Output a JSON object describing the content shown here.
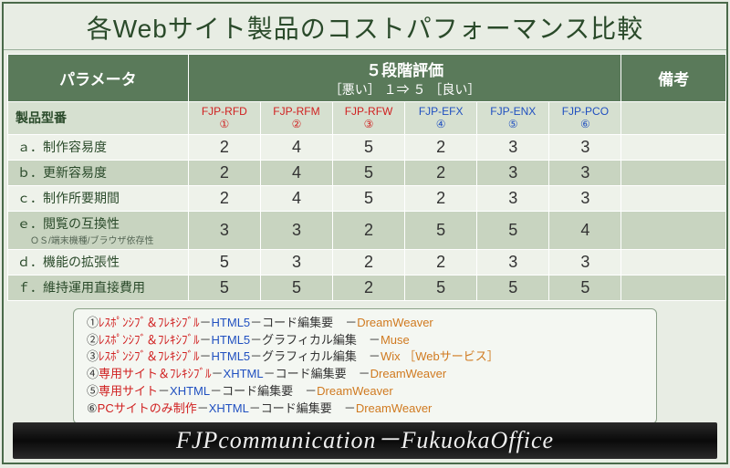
{
  "title": "各Webサイト製品のコストパフォーマンス比較",
  "headers": {
    "param": "パラメータ",
    "rating": "５段階評価",
    "rating_sub": "［悪い］ １⇒ ５ ［良い］",
    "remarks": "備考",
    "model_label": "製品型番"
  },
  "models": [
    {
      "code": "FJP-RFD",
      "num": "①",
      "color": "red"
    },
    {
      "code": "FJP-RFM",
      "num": "②",
      "color": "red"
    },
    {
      "code": "FJP-RFW",
      "num": "③",
      "color": "red"
    },
    {
      "code": "FJP-EFX",
      "num": "④",
      "color": "blue"
    },
    {
      "code": "FJP-ENX",
      "num": "⑤",
      "color": "blue"
    },
    {
      "code": "FJP-PCO",
      "num": "⑥",
      "color": "blue"
    }
  ],
  "rows": [
    {
      "label": "ａ．制作容易度",
      "sub": "",
      "v": [
        "2",
        "4",
        "5",
        "2",
        "3",
        "3"
      ]
    },
    {
      "label": "ｂ．更新容易度",
      "sub": "",
      "v": [
        "2",
        "4",
        "5",
        "2",
        "3",
        "3"
      ]
    },
    {
      "label": "ｃ．制作所要期間",
      "sub": "",
      "v": [
        "2",
        "4",
        "5",
        "2",
        "3",
        "3"
      ]
    },
    {
      "label": "ｅ．閲覧の互換性",
      "sub": "ＯＳ/端末機種/ブラウザ依存性",
      "v": [
        "3",
        "3",
        "2",
        "5",
        "5",
        "4"
      ]
    },
    {
      "label": "ｄ．機能の拡張性",
      "sub": "",
      "v": [
        "5",
        "3",
        "2",
        "2",
        "3",
        "3"
      ]
    },
    {
      "label": "ｆ．維持運用直接費用",
      "sub": "",
      "v": [
        "5",
        "5",
        "2",
        "5",
        "5",
        "5"
      ]
    }
  ],
  "legend": [
    {
      "num": "①",
      "type": "ﾚｽﾎﾟﾝｼﾌﾞ＆ﾌﾚｷｼﾌﾞﾙ",
      "tc": "red",
      "tech": "HTML5",
      "edit": "コード編集要",
      "tool": "DreamWeaver"
    },
    {
      "num": "②",
      "type": "ﾚｽﾎﾟﾝｼﾌﾞ＆ﾌﾚｷｼﾌﾞﾙ",
      "tc": "red",
      "tech": "HTML5",
      "edit": "グラフィカル編集",
      "tool": "Muse"
    },
    {
      "num": "③",
      "type": "ﾚｽﾎﾟﾝｼﾌﾞ＆ﾌﾚｷｼﾌﾞﾙ",
      "tc": "red",
      "tech": "HTML5",
      "edit": "グラフィカル編集",
      "tool": "Wix ［Webサービス］"
    },
    {
      "num": "④",
      "type": "専用サイト＆ﾌﾚｷｼﾌﾞﾙ",
      "tc": "red",
      "tech": "XHTML",
      "edit": "コード編集要",
      "tool": "DreamWeaver"
    },
    {
      "num": "⑤",
      "type": "専用サイト",
      "tc": "red",
      "tech": "XHTML",
      "edit": "コード編集要",
      "tool": "DreamWeaver"
    },
    {
      "num": "⑥",
      "type": "PCサイトのみ制作",
      "tc": "red",
      "tech": "XHTML",
      "edit": "コード編集要",
      "tool": "DreamWeaver"
    }
  ],
  "footer": "FJPcommunication－FukuokaOffice",
  "col_widths": {
    "param": 190,
    "model": 76,
    "remarks": 110
  }
}
